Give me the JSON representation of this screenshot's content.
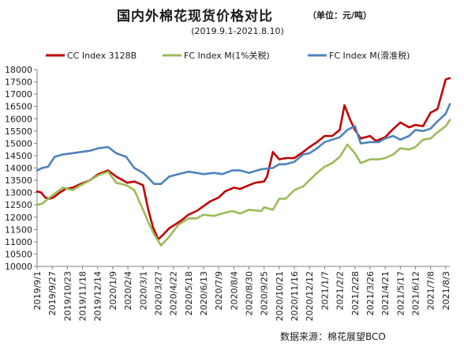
{
  "chart_data": {
    "type": "line",
    "title": "国内外棉花现货价格对比",
    "unit_note": "（单位：元/吨）",
    "subtitle": "(2019.9.1-2021.8.10)",
    "source": "数据来源：棉花展望BCO",
    "legend": [
      "CC Index 3128B",
      "FC Index M(1%关税)",
      "FC Index M(滑准税)"
    ],
    "legend_position": "top",
    "ylim": [
      10000,
      18000
    ],
    "yticks": [
      10000,
      10500,
      11000,
      11500,
      12000,
      12500,
      13000,
      13500,
      14000,
      14500,
      15000,
      15500,
      16000,
      16500,
      17000,
      17500,
      18000
    ],
    "xlim": [
      "2019-09-01",
      "2021-08-10"
    ],
    "xticks": [
      "2019/9/1",
      "2019/9/27",
      "2019/10/23",
      "2019/11/18",
      "2019/12/14",
      "2020/1/9",
      "2020/2/4",
      "2020/3/1",
      "2020/3/27",
      "2020/4/22",
      "2020/5/18",
      "2020/6/13",
      "2020/7/9",
      "2020/8/4",
      "2020/8/30",
      "2020/9/25",
      "2020/10/21",
      "2020/11/16",
      "2020/12/12",
      "2021/1/7",
      "2021/2/2",
      "2021/2/28",
      "2021/3/26",
      "2021/4/21",
      "2021/5/17",
      "2021/6/12",
      "2021/7/8",
      "2021/8/3"
    ],
    "grid": false,
    "colors": {
      "CC Index 3128B": "#c00000",
      "FC Index M(1%关税)": "#9bbb59",
      "FC Index M(滑准税)": "#4f81bd"
    },
    "series": [
      {
        "name": "CC Index 3128B",
        "x": [
          "2019-09-01",
          "2019-09-08",
          "2019-09-15",
          "2019-09-22",
          "2019-09-29",
          "2019-10-10",
          "2019-10-20",
          "2019-11-01",
          "2019-11-15",
          "2019-12-01",
          "2019-12-15",
          "2020-01-01",
          "2020-01-15",
          "2020-02-03",
          "2020-02-15",
          "2020-03-01",
          "2020-03-10",
          "2020-03-18",
          "2020-03-27",
          "2020-04-05",
          "2020-04-15",
          "2020-04-25",
          "2020-05-05",
          "2020-05-18",
          "2020-06-01",
          "2020-06-13",
          "2020-06-25",
          "2020-07-09",
          "2020-07-20",
          "2020-08-04",
          "2020-08-15",
          "2020-08-30",
          "2020-09-10",
          "2020-09-25",
          "2020-09-30",
          "2020-10-10",
          "2020-10-21",
          "2020-11-01",
          "2020-11-16",
          "2020-12-01",
          "2020-12-12",
          "2020-12-25",
          "2021-01-07",
          "2021-01-20",
          "2021-02-02",
          "2021-02-10",
          "2021-02-20",
          "2021-02-28",
          "2021-03-10",
          "2021-03-26",
          "2021-04-05",
          "2021-04-21",
          "2021-05-01",
          "2021-05-17",
          "2021-06-01",
          "2021-06-12",
          "2021-06-25",
          "2021-07-08",
          "2021-07-20",
          "2021-08-03",
          "2021-08-10"
        ],
        "values": [
          13050,
          13000,
          12800,
          12750,
          12800,
          13000,
          13150,
          13200,
          13350,
          13500,
          13750,
          13900,
          13650,
          13400,
          13450,
          13300,
          12300,
          11600,
          11100,
          11300,
          11550,
          11700,
          11850,
          12100,
          12250,
          12450,
          12650,
          12800,
          13050,
          13200,
          13150,
          13300,
          13400,
          13450,
          13650,
          14650,
          14350,
          14400,
          14400,
          14650,
          14850,
          15050,
          15300,
          15300,
          15550,
          16550,
          15950,
          15550,
          15200,
          15300,
          15100,
          15250,
          15500,
          15850,
          15650,
          15750,
          15700,
          16250,
          16400,
          17600,
          17650
        ]
      },
      {
        "name": "FC Index M(1%关税)",
        "x": [
          "2019-09-01",
          "2019-09-10",
          "2019-09-20",
          "2019-10-01",
          "2019-10-15",
          "2019-11-01",
          "2019-11-15",
          "2019-12-01",
          "2019-12-15",
          "2020-01-01",
          "2020-01-15",
          "2020-02-01",
          "2020-02-15",
          "2020-03-01",
          "2020-03-10",
          "2020-03-20",
          "2020-04-01",
          "2020-04-15",
          "2020-05-01",
          "2020-05-18",
          "2020-06-01",
          "2020-06-13",
          "2020-07-01",
          "2020-07-15",
          "2020-08-01",
          "2020-08-15",
          "2020-08-30",
          "2020-09-20",
          "2020-09-25",
          "2020-10-10",
          "2020-10-21",
          "2020-11-01",
          "2020-11-16",
          "2020-12-01",
          "2020-12-12",
          "2020-12-25",
          "2021-01-07",
          "2021-01-20",
          "2021-02-02",
          "2021-02-15",
          "2021-02-28",
          "2021-03-10",
          "2021-03-26",
          "2021-04-10",
          "2021-04-21",
          "2021-05-05",
          "2021-05-17",
          "2021-06-01",
          "2021-06-12",
          "2021-06-25",
          "2021-07-08",
          "2021-07-20",
          "2021-08-03",
          "2021-08-10"
        ],
        "values": [
          12500,
          12550,
          12750,
          12950,
          13200,
          13100,
          13300,
          13500,
          13700,
          13850,
          13400,
          13300,
          13100,
          12300,
          11800,
          11300,
          10850,
          11200,
          11700,
          11950,
          11950,
          12100,
          12050,
          12150,
          12250,
          12150,
          12300,
          12250,
          12400,
          12300,
          12750,
          12750,
          13100,
          13250,
          13500,
          13800,
          14050,
          14200,
          14450,
          14950,
          14600,
          14200,
          14350,
          14350,
          14400,
          14550,
          14800,
          14750,
          14850,
          15150,
          15200,
          15450,
          15700,
          15950
        ]
      },
      {
        "name": "FC Index M(滑准税)",
        "x": [
          "2019-09-01",
          "2019-09-10",
          "2019-09-20",
          "2019-10-01",
          "2019-10-15",
          "2019-11-01",
          "2019-11-15",
          "2019-12-01",
          "2019-12-15",
          "2020-01-01",
          "2020-01-15",
          "2020-02-01",
          "2020-02-15",
          "2020-03-01",
          "2020-03-10",
          "2020-03-20",
          "2020-04-01",
          "2020-04-15",
          "2020-05-01",
          "2020-05-18",
          "2020-06-01",
          "2020-06-13",
          "2020-07-01",
          "2020-07-15",
          "2020-08-01",
          "2020-08-15",
          "2020-08-30",
          "2020-09-20",
          "2020-10-10",
          "2020-10-21",
          "2020-11-01",
          "2020-11-16",
          "2020-12-01",
          "2020-12-12",
          "2020-12-25",
          "2021-01-07",
          "2021-01-20",
          "2021-02-02",
          "2021-02-15",
          "2021-02-28",
          "2021-03-10",
          "2021-03-26",
          "2021-04-10",
          "2021-04-21",
          "2021-05-05",
          "2021-05-17",
          "2021-06-01",
          "2021-06-12",
          "2021-06-25",
          "2021-07-08",
          "2021-07-20",
          "2021-08-03",
          "2021-08-10"
        ],
        "values": [
          13900,
          14000,
          14050,
          14450,
          14550,
          14600,
          14650,
          14700,
          14800,
          14850,
          14600,
          14450,
          14000,
          13800,
          13600,
          13350,
          13350,
          13650,
          13750,
          13850,
          13800,
          13750,
          13800,
          13750,
          13900,
          13900,
          13800,
          13950,
          14000,
          14150,
          14150,
          14250,
          14550,
          14600,
          14800,
          15050,
          15150,
          15250,
          15550,
          15700,
          15000,
          15050,
          15050,
          15200,
          15300,
          15150,
          15300,
          15550,
          15500,
          15600,
          15900,
          16200,
          16600
        ]
      }
    ]
  }
}
